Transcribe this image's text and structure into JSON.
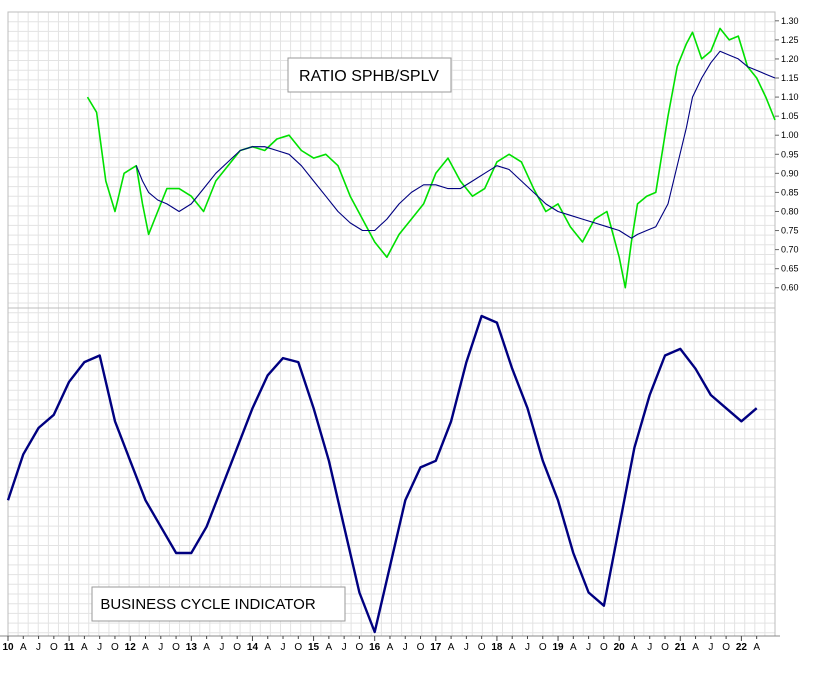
{
  "chart_data": [
    {
      "type": "line",
      "title": "RATIO SPHB/SPLV",
      "ylim": [
        0.56,
        1.31
      ],
      "yticks": [
        "1.30",
        "1.25",
        "1.20",
        "1.15",
        "1.10",
        "1.05",
        "1.00",
        "0.95",
        "0.90",
        "0.85",
        "0.80",
        "0.75",
        "0.70",
        "0.65",
        "0.60"
      ],
      "grid": true,
      "x": [
        2011.3,
        2011.45,
        2011.6,
        2011.75,
        2011.9,
        2012.1,
        2012.2,
        2012.3,
        2012.45,
        2012.6,
        2012.8,
        2013.0,
        2013.2,
        2013.4,
        2013.6,
        2013.8,
        2014.0,
        2014.2,
        2014.4,
        2014.6,
        2014.8,
        2015.0,
        2015.2,
        2015.4,
        2015.6,
        2015.8,
        2016.0,
        2016.2,
        2016.4,
        2016.6,
        2016.8,
        2017.0,
        2017.2,
        2017.4,
        2017.6,
        2017.8,
        2018.0,
        2018.2,
        2018.4,
        2018.6,
        2018.8,
        2019.0,
        2019.2,
        2019.4,
        2019.6,
        2019.8,
        2020.0,
        2020.1,
        2020.2,
        2020.3,
        2020.45,
        2020.6,
        2020.8,
        2020.95,
        2021.1,
        2021.2,
        2021.35,
        2021.5,
        2021.65,
        2021.8,
        2021.95,
        2022.1,
        2022.25,
        2022.4,
        2022.55
      ],
      "series": [
        {
          "color": "#00e000",
          "values": [
            1.1,
            1.06,
            0.88,
            0.8,
            0.9,
            0.92,
            0.82,
            0.74,
            0.8,
            0.86,
            0.86,
            0.84,
            0.8,
            0.88,
            0.92,
            0.96,
            0.97,
            0.96,
            0.99,
            1.0,
            0.96,
            0.94,
            0.95,
            0.92,
            0.84,
            0.78,
            0.72,
            0.68,
            0.74,
            0.78,
            0.82,
            0.9,
            0.94,
            0.88,
            0.84,
            0.86,
            0.93,
            0.95,
            0.93,
            0.86,
            0.8,
            0.82,
            0.76,
            0.72,
            0.78,
            0.8,
            0.68,
            0.6,
            0.72,
            0.82,
            0.84,
            0.85,
            1.05,
            1.18,
            1.24,
            1.27,
            1.2,
            1.22,
            1.28,
            1.25,
            1.26,
            1.18,
            1.15,
            1.1,
            1.04
          ]
        },
        {
          "color": "#000080",
          "values": [
            null,
            null,
            null,
            null,
            null,
            0.92,
            0.88,
            0.85,
            0.83,
            0.82,
            0.8,
            0.82,
            0.86,
            0.9,
            0.93,
            0.96,
            0.97,
            0.97,
            0.96,
            0.95,
            0.92,
            0.88,
            0.84,
            0.8,
            0.77,
            0.75,
            0.75,
            0.78,
            0.82,
            0.85,
            0.87,
            0.87,
            0.86,
            0.86,
            0.88,
            0.9,
            0.92,
            0.91,
            0.88,
            0.85,
            0.82,
            0.8,
            0.79,
            0.78,
            0.77,
            0.76,
            0.75,
            0.74,
            0.73,
            0.74,
            0.75,
            0.76,
            0.82,
            0.92,
            1.02,
            1.1,
            1.15,
            1.19,
            1.22,
            1.21,
            1.2,
            1.18,
            1.17,
            1.16,
            1.15
          ]
        }
      ]
    },
    {
      "type": "line",
      "title": "BUSINESS CYCLE INDICATOR",
      "grid": true,
      "x": [
        2010.0,
        2010.25,
        2010.5,
        2010.75,
        2011.0,
        2011.25,
        2011.5,
        2011.75,
        2012.0,
        2012.25,
        2012.5,
        2012.75,
        2013.0,
        2013.25,
        2013.5,
        2013.75,
        2014.0,
        2014.25,
        2014.5,
        2014.75,
        2015.0,
        2015.25,
        2015.5,
        2015.75,
        2016.0,
        2016.25,
        2016.5,
        2016.75,
        2017.0,
        2017.25,
        2017.5,
        2017.75,
        2018.0,
        2018.25,
        2018.5,
        2018.75,
        2019.0,
        2019.25,
        2019.5,
        2019.75,
        2020.0,
        2020.25,
        2020.5,
        2020.75,
        2021.0,
        2021.25,
        2021.5,
        2021.75,
        2022.0,
        2022.25
      ],
      "series": [
        {
          "color": "#000080",
          "values": [
            -0.1,
            0.25,
            0.45,
            0.55,
            0.8,
            0.95,
            1.0,
            0.5,
            0.2,
            -0.1,
            -0.3,
            -0.5,
            -0.5,
            -0.3,
            0.0,
            0.3,
            0.6,
            0.85,
            0.98,
            0.95,
            0.6,
            0.2,
            -0.3,
            -0.8,
            -1.1,
            -0.6,
            -0.1,
            0.15,
            0.2,
            0.5,
            0.95,
            1.3,
            1.25,
            0.9,
            0.6,
            0.2,
            -0.1,
            -0.5,
            -0.8,
            -0.9,
            -0.3,
            0.3,
            0.7,
            1.0,
            1.05,
            0.9,
            0.7,
            0.6,
            0.5,
            0.6
          ]
        }
      ]
    }
  ],
  "x_axis_labels": [
    "10",
    "A",
    "J",
    "O",
    "11",
    "A",
    "J",
    "O",
    "12",
    "A",
    "J",
    "O",
    "13",
    "A",
    "J",
    "O",
    "14",
    "A",
    "J",
    "O",
    "15",
    "A",
    "J",
    "O",
    "16",
    "A",
    "J",
    "O",
    "17",
    "A",
    "J",
    "O",
    "18",
    "A",
    "J",
    "O",
    "19",
    "A",
    "J",
    "O",
    "20",
    "A",
    "J",
    "O",
    "21",
    "A",
    "J",
    "O",
    "22",
    "A"
  ],
  "x_axis_label_is_year": [
    true,
    false,
    false,
    false,
    true,
    false,
    false,
    false,
    true,
    false,
    false,
    false,
    true,
    false,
    false,
    false,
    true,
    false,
    false,
    false,
    true,
    false,
    false,
    false,
    true,
    false,
    false,
    false,
    true,
    false,
    false,
    false,
    true,
    false,
    false,
    false,
    true,
    false,
    false,
    false,
    true,
    false,
    false,
    false,
    true,
    false,
    false,
    false,
    true,
    false
  ],
  "x_range": [
    2010.0,
    2022.55
  ]
}
